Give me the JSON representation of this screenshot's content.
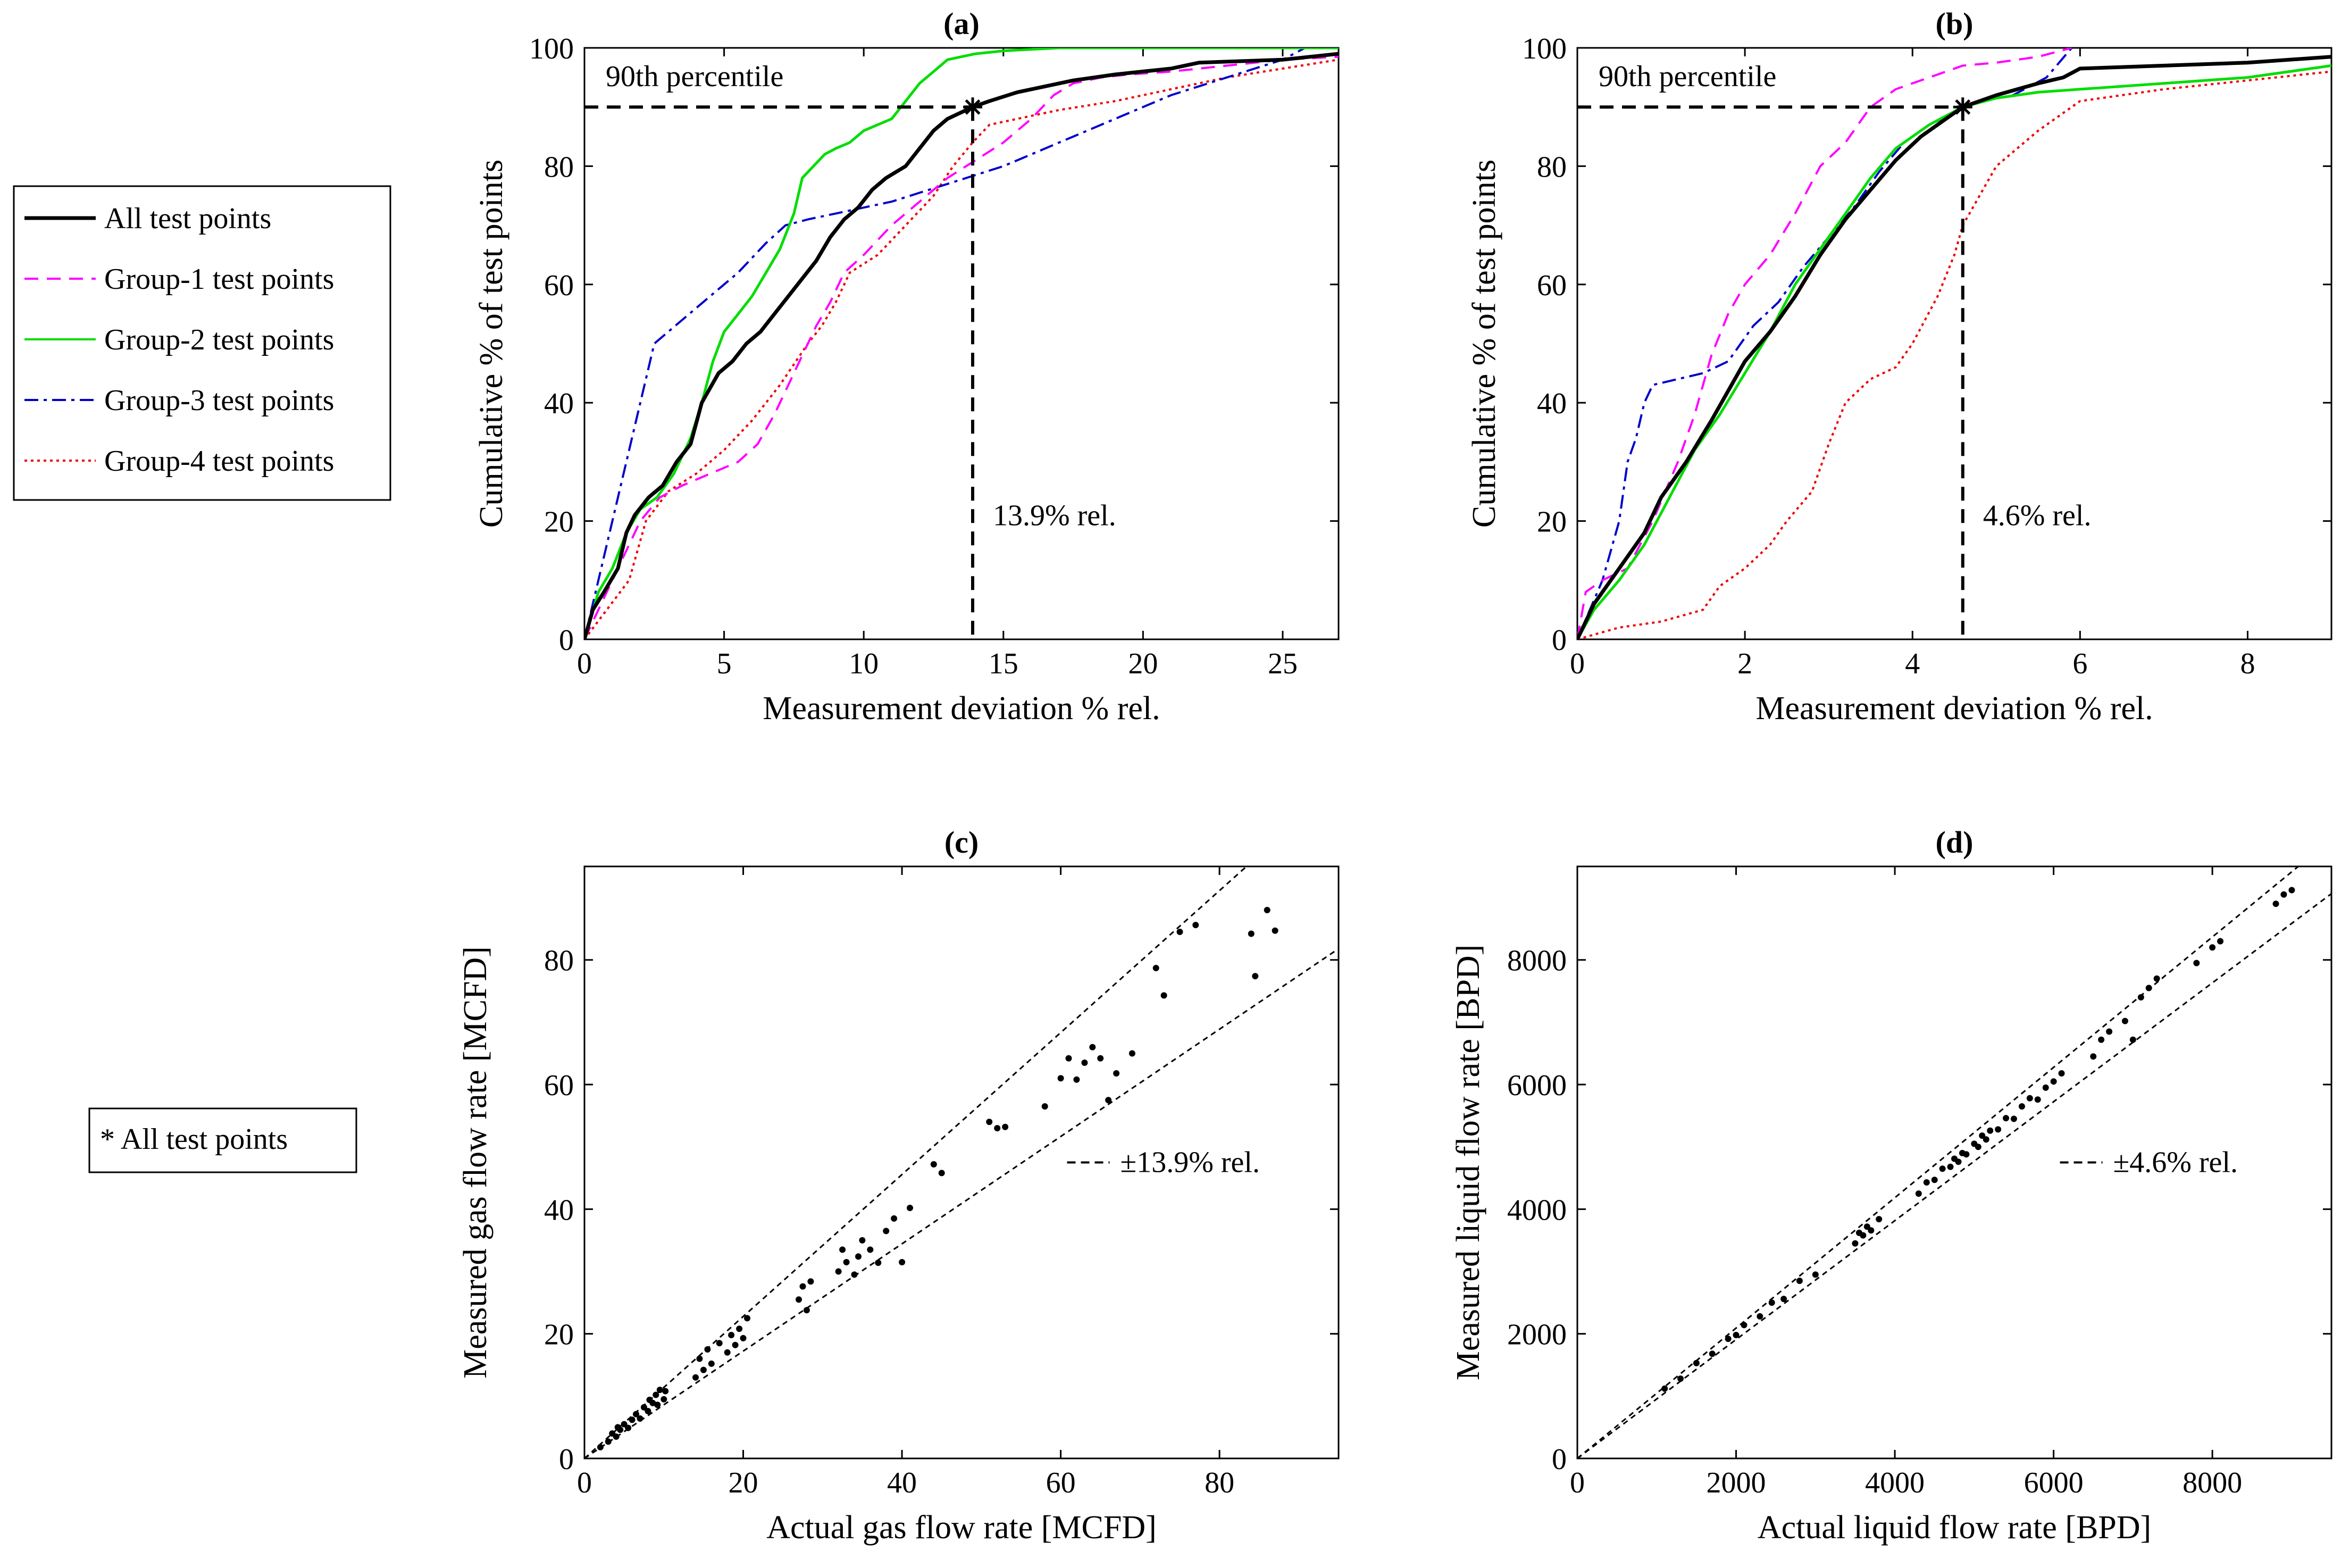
{
  "legend": {
    "entries": [
      {
        "label": "All test points",
        "color": "#000000",
        "dash": "solid"
      },
      {
        "label": "Group-1 test points",
        "color": "#ff00ff",
        "dash": "dashed"
      },
      {
        "label": "Group-2 test points",
        "color": "#00dd00",
        "dash": "solid"
      },
      {
        "label": "Group-3 test points",
        "color": "#0000cc",
        "dash": "dashdot"
      },
      {
        "label": "Group-4 test points",
        "color": "#ee0000",
        "dash": "dotted"
      }
    ],
    "marker_note": "* All test points"
  },
  "chart_data": [
    {
      "id": "a",
      "type": "line",
      "title": "(a)",
      "xlabel": "Measurement deviation % rel.",
      "ylabel": "Cumulative % of test points",
      "xlim": [
        0,
        27
      ],
      "ylim": [
        0,
        100
      ],
      "xticks": [
        0,
        5,
        10,
        15,
        20,
        25
      ],
      "yticks": [
        0,
        20,
        40,
        60,
        80,
        100
      ],
      "annotations": {
        "percentile_label": "90th percentile",
        "deviation_label": "13.9% rel.",
        "x90": 13.9,
        "y90": 90
      },
      "series": [
        {
          "name": "All test points",
          "x": [
            0,
            0.3,
            0.7,
            1.2,
            1.5,
            1.8,
            2.3,
            2.8,
            3.3,
            3.8,
            4.2,
            4.8,
            5.3,
            5.8,
            6.3,
            6.8,
            7.3,
            7.8,
            8.3,
            8.8,
            9.3,
            9.8,
            10.3,
            10.8,
            11.5,
            12.0,
            12.5,
            13.0,
            13.9,
            14.5,
            15.5,
            16.5,
            17.5,
            19,
            21,
            22,
            25,
            27
          ],
          "y": [
            0,
            5,
            8,
            12,
            18,
            21,
            24,
            26,
            30,
            33,
            40,
            45,
            47,
            50,
            52,
            55,
            58,
            61,
            64,
            68,
            71,
            73,
            76,
            78,
            80,
            83,
            86,
            88,
            90,
            91,
            92.5,
            93.5,
            94.5,
            95.5,
            96.5,
            97.5,
            98,
            99
          ]
        },
        {
          "name": "Group-1 test points",
          "x": [
            0,
            1.0,
            2.0,
            2.7,
            3.5,
            4.5,
            5.5,
            6.2,
            6.8,
            7.3,
            7.8,
            8.3,
            8.8,
            9.3,
            10.0,
            11.0,
            12.0,
            13.0,
            14.0,
            15.0,
            16.0,
            16.8,
            17.5,
            18.5,
            19.5,
            21.0,
            23.0,
            25.0,
            27.0
          ],
          "y": [
            0,
            10,
            20,
            24,
            26,
            28,
            30,
            33,
            38,
            43,
            48,
            53,
            57,
            62,
            65,
            70,
            74,
            78,
            81,
            84,
            88,
            92,
            94,
            95,
            95.5,
            96,
            97,
            98,
            98.5
          ]
        },
        {
          "name": "Group-2 test points",
          "x": [
            0,
            0.5,
            1.0,
            1.5,
            2.0,
            2.6,
            3.2,
            3.8,
            4.2,
            4.6,
            5.0,
            5.5,
            6.0,
            6.5,
            7.0,
            7.5,
            7.8,
            8.2,
            8.6,
            9.0,
            9.5,
            10.0,
            10.5,
            11.0,
            11.5,
            12.0,
            12.5,
            13.0,
            14.0,
            15.0,
            17.0,
            21.0,
            27.0
          ],
          "y": [
            0,
            8,
            12,
            18,
            22,
            24,
            28,
            34,
            40,
            47,
            52,
            55,
            58,
            62,
            66,
            72,
            78,
            80,
            82,
            83,
            84,
            86,
            87,
            88,
            91,
            94,
            96,
            98,
            99,
            99.5,
            100,
            100,
            100
          ]
        },
        {
          "name": "Group-3 test points",
          "x": [
            0,
            1.0,
            2.5,
            3.5,
            4.5,
            5.5,
            6.5,
            7.2,
            8.0,
            9.0,
            10.0,
            11.0,
            12.0,
            13.0,
            14.0,
            15.0,
            16.0,
            17.0,
            18.0,
            19.0,
            20.0,
            21.0,
            22.0,
            23.0,
            24.0,
            25.0,
            25.8,
            27.0
          ],
          "y": [
            0,
            20,
            50,
            54,
            58,
            62,
            67,
            70,
            71,
            72,
            73,
            74,
            75.5,
            77,
            78.5,
            80,
            82,
            84,
            86,
            88,
            90,
            92,
            93.5,
            95,
            96.5,
            98,
            100,
            100
          ]
        },
        {
          "name": "Group-4 test points",
          "x": [
            0,
            0.8,
            1.6,
            2.2,
            3.0,
            4.0,
            5.0,
            6.0,
            7.0,
            8.0,
            8.5,
            9.0,
            9.5,
            10.5,
            11.5,
            12.5,
            13.2,
            13.9,
            14.5,
            15.5,
            17.0,
            19.0,
            21.0,
            23.0,
            25.0,
            27.0
          ],
          "y": [
            0,
            5,
            10,
            20,
            25,
            28,
            32,
            37,
            43,
            50,
            53,
            57,
            62,
            65,
            70,
            75,
            80,
            84,
            87,
            88,
            89.5,
            91,
            93,
            95,
            96.5,
            98
          ]
        }
      ]
    },
    {
      "id": "b",
      "type": "line",
      "title": "(b)",
      "xlabel": "Measurement deviation % rel.",
      "ylabel": "Cumulative % of test points",
      "xlim": [
        0,
        9
      ],
      "ylim": [
        0,
        100
      ],
      "xticks": [
        0,
        2,
        4,
        6,
        8
      ],
      "yticks": [
        0,
        20,
        40,
        60,
        80,
        100
      ],
      "annotations": {
        "percentile_label": "90th percentile",
        "deviation_label": "4.6% rel.",
        "x90": 4.6,
        "y90": 90
      },
      "series": [
        {
          "name": "All test points",
          "x": [
            0,
            0.2,
            0.5,
            0.8,
            1.0,
            1.3,
            1.6,
            1.8,
            2.0,
            2.3,
            2.6,
            2.9,
            3.2,
            3.5,
            3.8,
            4.1,
            4.4,
            4.6,
            5.0,
            5.5,
            5.8,
            6.0,
            7.0,
            8.0,
            9.0
          ],
          "y": [
            0,
            6,
            12,
            18,
            24,
            30,
            37,
            42,
            47,
            52,
            58,
            65,
            71,
            76,
            81,
            85,
            88,
            90,
            92,
            94,
            95,
            96.5,
            97,
            97.5,
            98.5
          ]
        },
        {
          "name": "Group-1 test points",
          "x": [
            0,
            0.1,
            0.3,
            0.6,
            0.9,
            1.2,
            1.4,
            1.6,
            1.8,
            2.0,
            2.3,
            2.6,
            2.9,
            3.2,
            3.5,
            3.8,
            4.2,
            4.6,
            5.0,
            5.5,
            5.9
          ],
          "y": [
            0,
            8,
            10,
            12,
            20,
            30,
            38,
            48,
            55,
            60,
            65,
            72,
            80,
            84,
            90,
            93,
            95,
            97,
            97.5,
            98.5,
            100
          ]
        },
        {
          "name": "Group-2 test points",
          "x": [
            0,
            0.2,
            0.5,
            0.8,
            1.1,
            1.4,
            1.7,
            2.0,
            2.3,
            2.6,
            2.9,
            3.2,
            3.5,
            3.8,
            4.2,
            4.6,
            5.0,
            5.5,
            6.0,
            7.0,
            8.0,
            9.0
          ],
          "y": [
            0,
            5,
            10,
            16,
            24,
            32,
            38,
            45,
            52,
            60,
            66,
            72,
            78,
            83,
            87,
            90,
            91.5,
            92.5,
            93,
            94,
            95,
            97
          ]
        },
        {
          "name": "Group-3 test points",
          "x": [
            0,
            0.3,
            0.5,
            0.6,
            0.7,
            0.8,
            0.9,
            1.2,
            1.5,
            1.8,
            2.1,
            2.4,
            2.7,
            3.0,
            3.3,
            3.6,
            3.9,
            4.2,
            4.5,
            4.8,
            5.2,
            5.6,
            5.9
          ],
          "y": [
            0,
            10,
            20,
            30,
            34,
            40,
            43,
            44,
            45,
            47,
            53,
            57,
            63,
            68,
            73,
            79,
            84,
            87,
            89,
            91,
            92,
            95,
            100
          ]
        },
        {
          "name": "Group-4 test points",
          "x": [
            0,
            0.5,
            1.0,
            1.5,
            1.7,
            2.0,
            2.3,
            2.5,
            2.8,
            3.0,
            3.2,
            3.5,
            3.8,
            4.0,
            4.3,
            4.5,
            4.6,
            4.8,
            5.0,
            5.5,
            6.0,
            7.0,
            8.0,
            9.0
          ],
          "y": [
            0,
            2,
            3,
            5,
            9,
            12,
            16,
            20,
            25,
            33,
            40,
            44,
            46,
            50,
            58,
            65,
            70,
            75,
            80,
            86,
            91,
            93,
            94.5,
            96
          ]
        }
      ]
    },
    {
      "id": "c",
      "type": "scatter",
      "title": "(c)",
      "xlabel": "Actual gas flow rate  [MCFD]",
      "ylabel": "Measured gas flow rate  [MCFD]",
      "xlim": [
        0,
        95
      ],
      "ylim": [
        0,
        95
      ],
      "xticks": [
        0,
        20,
        40,
        60,
        80
      ],
      "yticks": [
        0,
        20,
        40,
        60,
        80
      ],
      "band_label": "±13.9% rel.",
      "band": 0.139,
      "points": [
        [
          2,
          1.8
        ],
        [
          3,
          2.7
        ],
        [
          3.5,
          4
        ],
        [
          4,
          3.5
        ],
        [
          4.2,
          5
        ],
        [
          4.5,
          4.6
        ],
        [
          5,
          5.5
        ],
        [
          5.5,
          4.9
        ],
        [
          6,
          6.2
        ],
        [
          6.5,
          7.1
        ],
        [
          7,
          6.4
        ],
        [
          7.5,
          8.2
        ],
        [
          8,
          7.6
        ],
        [
          8.2,
          9.4
        ],
        [
          8.6,
          8.9
        ],
        [
          9,
          10.2
        ],
        [
          9.2,
          8.6
        ],
        [
          9.5,
          11
        ],
        [
          10,
          9.5
        ],
        [
          10.2,
          10.8
        ],
        [
          14,
          13
        ],
        [
          14.5,
          16
        ],
        [
          15,
          14.2
        ],
        [
          15.5,
          17.5
        ],
        [
          16,
          15.2
        ],
        [
          17,
          18.5
        ],
        [
          18,
          17
        ],
        [
          18.5,
          19.8
        ],
        [
          19,
          18.2
        ],
        [
          19.5,
          20.8
        ],
        [
          20,
          19.3
        ],
        [
          20.5,
          22.5
        ],
        [
          27,
          25.5
        ],
        [
          27.5,
          27.6
        ],
        [
          28,
          23.8
        ],
        [
          28.5,
          28.4
        ],
        [
          32,
          30
        ],
        [
          32.5,
          33.5
        ],
        [
          33,
          31.5
        ],
        [
          34,
          29.5
        ],
        [
          34.5,
          32.4
        ],
        [
          35,
          35
        ],
        [
          36,
          33.5
        ],
        [
          37,
          31.4
        ],
        [
          38,
          36.5
        ],
        [
          39,
          38.5
        ],
        [
          40,
          31.5
        ],
        [
          41,
          40.2
        ],
        [
          44,
          47.2
        ],
        [
          45,
          45.8
        ],
        [
          51,
          54
        ],
        [
          52,
          53
        ],
        [
          53,
          53.2
        ],
        [
          58,
          56.5
        ],
        [
          60,
          61
        ],
        [
          61,
          64.2
        ],
        [
          62,
          60.8
        ],
        [
          63,
          63.5
        ],
        [
          64,
          66
        ],
        [
          65,
          64.2
        ],
        [
          66,
          57.5
        ],
        [
          67,
          61.8
        ],
        [
          69,
          65
        ],
        [
          72,
          78.7
        ],
        [
          73,
          74.3
        ],
        [
          75,
          84.5
        ],
        [
          77,
          85.6
        ],
        [
          84,
          84.2
        ],
        [
          84.5,
          77.4
        ],
        [
          86,
          88
        ],
        [
          87,
          84.7
        ]
      ]
    },
    {
      "id": "d",
      "type": "scatter",
      "title": "(d)",
      "xlabel": "Actual liquid flow rate  [BPD]",
      "ylabel": "Measured liquid flow rate  [BPD]",
      "xlim": [
        0,
        9500
      ],
      "ylim": [
        0,
        9500
      ],
      "xticks": [
        0,
        2000,
        4000,
        6000,
        8000
      ],
      "yticks": [
        0,
        2000,
        4000,
        6000,
        8000
      ],
      "band_label": "±4.6% rel.",
      "band": 0.046,
      "points": [
        [
          1100,
          1120
        ],
        [
          1300,
          1280
        ],
        [
          1500,
          1530
        ],
        [
          1700,
          1680
        ],
        [
          1900,
          1920
        ],
        [
          2000,
          1980
        ],
        [
          2100,
          2140
        ],
        [
          2300,
          2280
        ],
        [
          2450,
          2500
        ],
        [
          2600,
          2560
        ],
        [
          2800,
          2850
        ],
        [
          3000,
          2950
        ],
        [
          3500,
          3450
        ],
        [
          3550,
          3620
        ],
        [
          3600,
          3580
        ],
        [
          3650,
          3720
        ],
        [
          3700,
          3660
        ],
        [
          3800,
          3840
        ],
        [
          4300,
          4250
        ],
        [
          4400,
          4430
        ],
        [
          4500,
          4470
        ],
        [
          4600,
          4650
        ],
        [
          4700,
          4680
        ],
        [
          4750,
          4810
        ],
        [
          4800,
          4760
        ],
        [
          4850,
          4900
        ],
        [
          4900,
          4880
        ],
        [
          5000,
          5050
        ],
        [
          5050,
          5000
        ],
        [
          5100,
          5180
        ],
        [
          5150,
          5120
        ],
        [
          5200,
          5260
        ],
        [
          5300,
          5280
        ],
        [
          5400,
          5460
        ],
        [
          5500,
          5450
        ],
        [
          5600,
          5650
        ],
        [
          5700,
          5780
        ],
        [
          5800,
          5760
        ],
        [
          5900,
          5950
        ],
        [
          6000,
          6050
        ],
        [
          6100,
          6180
        ],
        [
          6500,
          6450
        ],
        [
          6600,
          6720
        ],
        [
          6700,
          6850
        ],
        [
          6900,
          7020
        ],
        [
          7000,
          6720
        ],
        [
          7100,
          7400
        ],
        [
          7200,
          7550
        ],
        [
          7300,
          7700
        ],
        [
          7800,
          7950
        ],
        [
          8000,
          8200
        ],
        [
          8100,
          8300
        ],
        [
          8800,
          8900
        ],
        [
          8900,
          9050
        ],
        [
          9000,
          9120
        ]
      ]
    }
  ]
}
